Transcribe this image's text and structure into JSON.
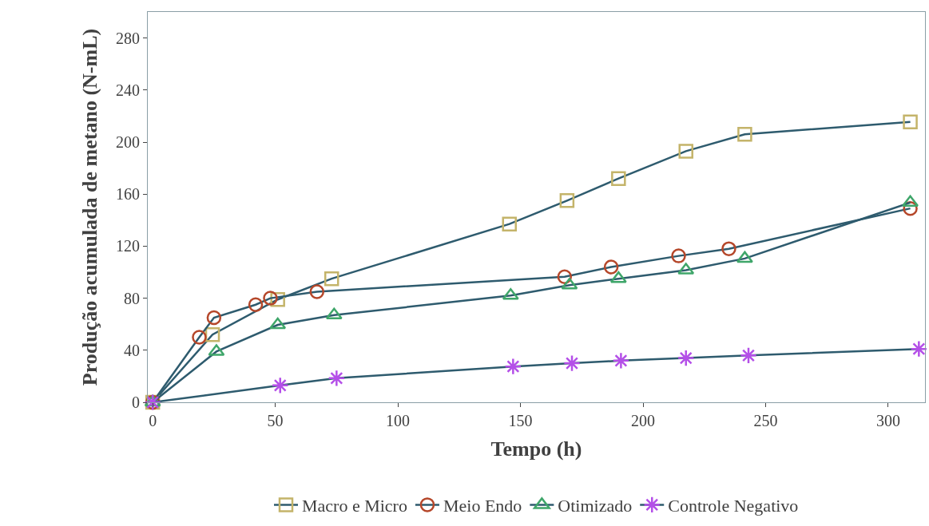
{
  "chart_data": {
    "type": "line",
    "xlabel": "Tempo (h)",
    "ylabel": "Produção acumulada de metano (N-mL)",
    "xlim": [
      -2,
      315
    ],
    "xticks": [
      0,
      50,
      100,
      150,
      200,
      250,
      300
    ],
    "ylim": [
      0,
      300
    ],
    "yticks": [
      0,
      40,
      80,
      120,
      160,
      200,
      240,
      280
    ],
    "legend": "bottom",
    "series": [
      {
        "name": "Macro e Micro",
        "color": "#c4b46a",
        "marker": "square",
        "x": [
          0,
          24.4,
          51,
          73,
          145.5,
          169,
          190,
          217.5,
          241.5,
          309
        ],
        "values": [
          0,
          52,
          79,
          95,
          137,
          155,
          172,
          193,
          206,
          215.5
        ]
      },
      {
        "name": "Meio Endo",
        "color": "#b5472a",
        "marker": "circle",
        "x": [
          0,
          19,
          25,
          42,
          48,
          67,
          168,
          187,
          214.5,
          235,
          309
        ],
        "values": [
          0,
          50,
          65,
          75,
          80,
          85,
          96.5,
          104,
          112.5,
          118,
          149
        ]
      },
      {
        "name": "Otimizado",
        "color": "#3fa66a",
        "marker": "triangle",
        "x": [
          0,
          26,
          51,
          74,
          146,
          170,
          190,
          217.5,
          241.5,
          309
        ],
        "values": [
          0,
          39,
          59.5,
          67,
          82,
          90,
          95,
          101.5,
          110.5,
          153.5
        ]
      },
      {
        "name": "Controle Negativo",
        "color": "#b44fe8",
        "marker": "cross",
        "x": [
          0,
          52,
          75,
          147,
          171,
          191,
          217.5,
          243,
          312.5
        ],
        "values": [
          0,
          13,
          18.5,
          27.5,
          30,
          32,
          34,
          36,
          41
        ]
      }
    ]
  }
}
